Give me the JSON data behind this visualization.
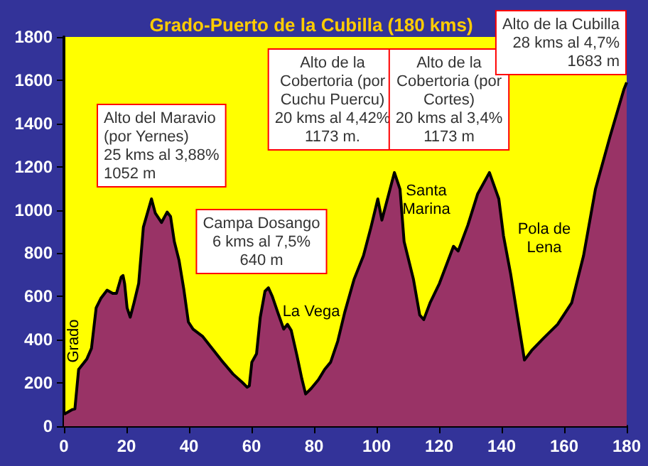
{
  "chart_data": {
    "type": "area",
    "title": "Grado-Puerto de la Cubilla (180 kms)",
    "x": [
      0,
      2.7,
      3.5,
      4.7,
      7.3,
      8.8,
      10.3,
      11.8,
      13.8,
      15.6,
      16.8,
      18.3,
      18.9,
      19.4,
      20.2,
      21.2,
      22.4,
      23.9,
      25.4,
      28,
      29.2,
      31.2,
      33,
      34.1,
      35.3,
      36.8,
      38.3,
      39.8,
      41.3,
      44.3,
      47.3,
      50.3,
      54.1,
      57.1,
      58.6,
      59.3,
      60.1,
      61.6,
      62.8,
      64.3,
      65.4,
      66.6,
      68.4,
      70.3,
      71.5,
      72.7,
      74.5,
      76.1,
      77.3,
      79.1,
      81.4,
      83.4,
      85.3,
      87.6,
      89.8,
      92.8,
      95.8,
      98.2,
      100.4,
      101.7,
      105.7,
      107.5,
      108.8,
      111.8,
      113.8,
      115.1,
      117.1,
      120.1,
      124.6,
      126.1,
      129.2,
      132.3,
      136.1,
      139.1,
      140.6,
      142.9,
      145.1,
      147.3,
      149.6,
      153.4,
      157.9,
      162.4,
      166.2,
      170,
      174.6,
      179.1,
      180
    ],
    "series": [
      {
        "color": "#993366",
        "values": [
          55,
          77,
          80,
          263,
          310,
          360,
          547,
          591,
          629,
          614,
          614,
          690,
          697,
          660,
          547,
          504,
          570,
          660,
          920,
          1051,
          986,
          942,
          990,
          970,
          854,
          768,
          637,
          482,
          449,
          416,
          361,
          306,
          241,
          202,
          180,
          187,
          296,
          335,
          504,
          624,
          640,
          602,
          526,
          449,
          471,
          443,
          329,
          219,
          149,
          175,
          215,
          263,
          296,
          394,
          526,
          679,
          788,
          920,
          1051,
          953,
          1173,
          1096,
          854,
          679,
          514,
          493,
          570,
          660,
          832,
          810,
          930,
          1073,
          1173,
          1051,
          880,
          703,
          504,
          306,
          350,
          407,
          471,
          570,
          788,
          1096,
          1336,
          1557,
          1590
        ]
      }
    ],
    "xlim": [
      0,
      180
    ],
    "xticks": [
      0,
      20,
      40,
      60,
      80,
      100,
      120,
      140,
      160,
      180
    ],
    "ylim": [
      0,
      1800
    ],
    "yticks": [
      0,
      200,
      400,
      600,
      800,
      1000,
      1200,
      1400,
      1600,
      1800
    ],
    "grid": false,
    "annotations": [
      "Alto del Maravio\n(por Yernes)\n25 kms al 3,88%\n1052 m",
      "Campa Dosango\n6 kms al 7,5%\n640 m",
      "Alto de la\nCobertoria (por\nCuchu Puercu)\n20 kms al 4,42%\n1173 m.",
      "Alto de la\nCobertoria (por\nCortes)\n20 kms al 3,4%\n1173 m",
      "Alto de la Cubilla\n28 kms al 4,7%\n1683 m",
      "Grado",
      "La Vega",
      "Santa\nMarina",
      "Pola de\nLena"
    ]
  }
}
